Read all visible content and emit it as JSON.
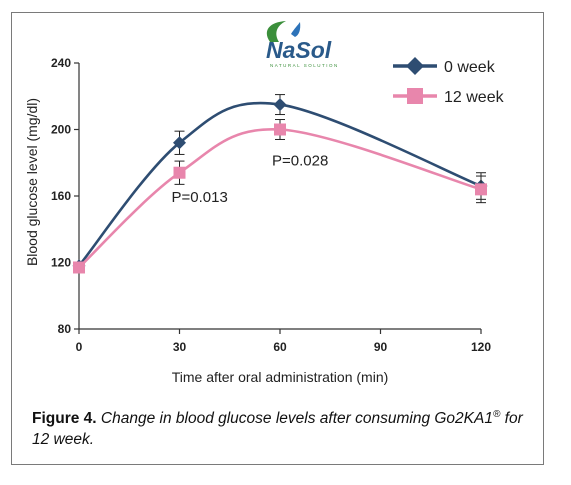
{
  "logo": {
    "text": "NaSol",
    "subtext": "NATURAL SOLUTION"
  },
  "chart_data": {
    "type": "line",
    "x": [
      0,
      30,
      60,
      120
    ],
    "xticks": [
      0,
      30,
      60,
      90,
      120
    ],
    "yticks": [
      80,
      120,
      160,
      200,
      240
    ],
    "xlabel": "Time after oral administration (min)",
    "ylabel": "Blood glucose level (mg/dl)",
    "xlim": [
      0,
      120
    ],
    "ylim": [
      80,
      240
    ],
    "legend_position": "top-right",
    "series": [
      {
        "name": "0 week",
        "values": [
          118,
          192,
          215,
          166
        ],
        "err": [
          0,
          7,
          6,
          8
        ],
        "color": "#2e4d72",
        "marker": "diamond"
      },
      {
        "name": "12 week",
        "values": [
          117,
          174,
          200,
          164
        ],
        "err": [
          0,
          7,
          6,
          8
        ],
        "color": "#e886ac",
        "marker": "square"
      }
    ],
    "annotations": [
      {
        "text": "P=0.013",
        "x": 30,
        "y": 160
      },
      {
        "text": "P=0.028",
        "x": 60,
        "y": 182
      }
    ]
  },
  "caption": {
    "figure": "Figure 4.",
    "text": " Change in blood glucose levels after consuming Go2KA1",
    "sup": "®",
    "end": " for 12 week."
  }
}
